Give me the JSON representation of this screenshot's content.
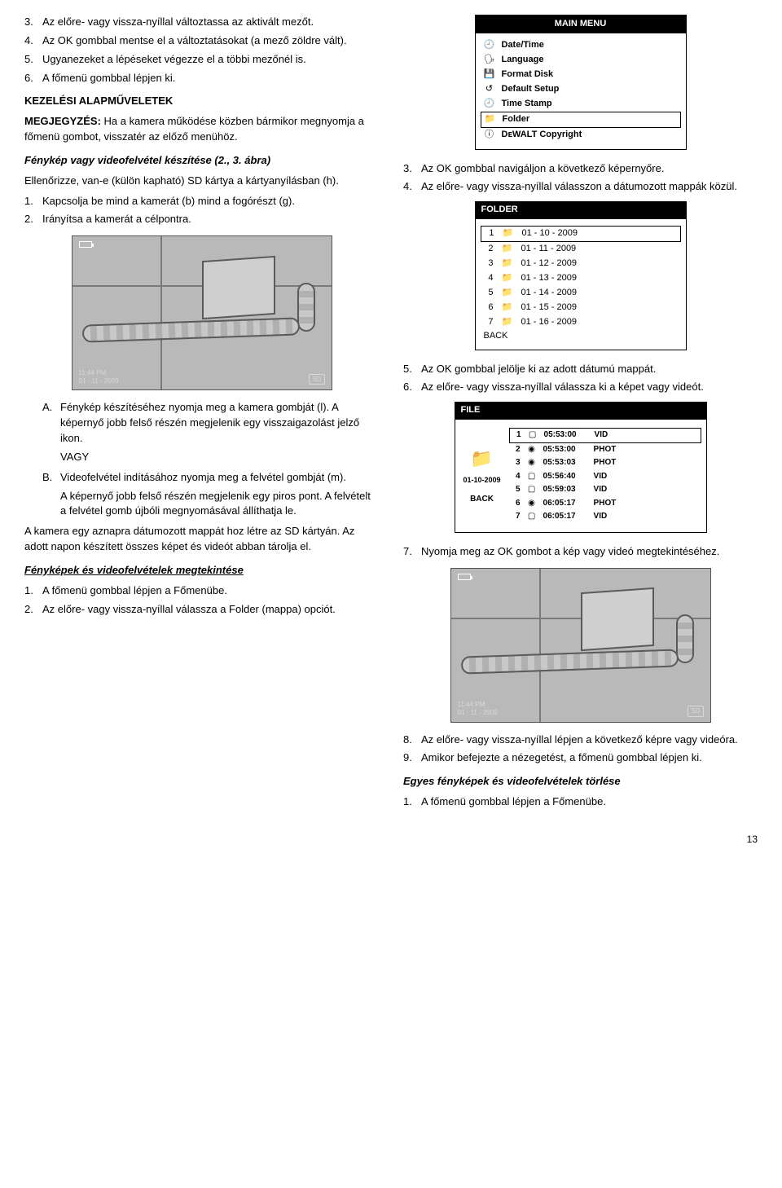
{
  "left": {
    "steps_top": [
      {
        "n": "3.",
        "t": "Az előre- vagy vissza-nyíllal változtassa az aktivált mezőt."
      },
      {
        "n": "4.",
        "t": "Az OK gombbal mentse el a változtatásokat (a mező zöldre vált)."
      },
      {
        "n": "5.",
        "t": "Ugyanezeket a lépéseket végezze el a többi mezőnél is."
      },
      {
        "n": "6.",
        "t": "A főmenü gombbal lépjen ki."
      }
    ],
    "ops_title": "KEZELÉSI ALAPMŰVELETEK",
    "note_label": "MEGJEGYZÉS:",
    "note_text": " Ha a kamera működése közben bármikor megnyomja a főmenü gombot, visszatér az előző menühöz.",
    "photo_title": "Fénykép vagy videofelvétel készítése (2., 3. ábra)",
    "photo_intro": "Ellenőrizze, van-e (külön kapható) SD kártya a kártyanyílásban (h).",
    "photo_steps": [
      {
        "n": "1.",
        "t": "Kapcsolja be mind a kamerát (b) mind a fogórészt (g)."
      },
      {
        "n": "2.",
        "t": "Irányítsa a kamerát a célpontra."
      }
    ],
    "preview_time": "11:44 PM",
    "preview_date": "01 - 11 - 2009",
    "sd_label": "SD",
    "sub_a_label": "A.",
    "sub_a_text": "Fénykép készítéséhez nyomja meg a kamera gombját (l). A képernyő jobb felső részén megjelenik egy visszaigazolást jelző ikon.",
    "or_label": "VAGY",
    "sub_b_label": "B.",
    "sub_b_text": "Videofelvétel indításához nyomja meg a felvétel gombját (m).",
    "sub_b_extra": "A képernyő jobb felső részén megjelenik egy piros pont. A felvételt a felvétel gomb újbóli megnyomásával állíthatja le.",
    "para_after": "A kamera egy aznapra dátumozott mappát hoz létre az SD kártyán. Az adott napon készített összes képet és videót abban tárolja el.",
    "view_title": "Fényképek és videofelvételek megtekintése",
    "view_steps": [
      {
        "n": "1.",
        "t": "A főmenü gombbal lépjen a Főmenübe."
      },
      {
        "n": "2.",
        "t": "Az előre- vagy vissza-nyíllal válassza a Folder (mappa) opciót."
      }
    ]
  },
  "right": {
    "menu_title": "MAIN MENU",
    "menu_items": [
      {
        "icon": "🕘",
        "label": "Date/Time",
        "boxed": false
      },
      {
        "icon": "🗣",
        "label": "Language",
        "boxed": false
      },
      {
        "icon": "💾",
        "label": "Format Disk",
        "boxed": false
      },
      {
        "icon": "↺",
        "label": "Default Setup",
        "boxed": false
      },
      {
        "icon": "🕘",
        "label": "Time Stamp",
        "boxed": false
      },
      {
        "icon": "📁",
        "label": "Folder",
        "boxed": true
      },
      {
        "icon": "ⓘ",
        "label": "DᴇWALT Copyright",
        "boxed": false
      }
    ],
    "steps_after_menu": [
      {
        "n": "3.",
        "t": "Az OK gombbal navigáljon a következő képernyőre."
      },
      {
        "n": "4.",
        "t": "Az előre- vagy vissza-nyíllal válasszon a dátumozott mappák közül."
      }
    ],
    "folder_title": "FOLDER",
    "folder_items": [
      {
        "n": "1",
        "label": "01 - 10 - 2009",
        "boxed": true
      },
      {
        "n": "2",
        "label": "01 - 11 - 2009",
        "boxed": false
      },
      {
        "n": "3",
        "label": "01 - 12 - 2009",
        "boxed": false
      },
      {
        "n": "4",
        "label": "01 - 13 - 2009",
        "boxed": false
      },
      {
        "n": "5",
        "label": "01 - 14 - 2009",
        "boxed": false
      },
      {
        "n": "6",
        "label": "01 - 15 - 2009",
        "boxed": false
      },
      {
        "n": "7",
        "label": "01 - 16 - 2009",
        "boxed": false
      }
    ],
    "folder_back": "BACK",
    "steps_after_folder": [
      {
        "n": "5.",
        "t": "Az OK gombbal jelölje ki az adott dátumú mappát."
      },
      {
        "n": "6.",
        "t": "Az előre- vagy vissza-nyíllal válassza ki a képet vagy videót."
      }
    ],
    "file_title": "FILE",
    "file_date": "01-10-2009",
    "file_items": [
      {
        "n": "1",
        "icon": "▢",
        "time": "05:53:00",
        "type": "VID",
        "boxed": true
      },
      {
        "n": "2",
        "icon": "◉",
        "time": "05:53:00",
        "type": "PHOT",
        "boxed": false
      },
      {
        "n": "3",
        "icon": "◉",
        "time": "05:53:03",
        "type": "PHOT",
        "boxed": false
      },
      {
        "n": "4",
        "icon": "▢",
        "time": "05:56:40",
        "type": "VID",
        "boxed": false
      },
      {
        "n": "5",
        "icon": "▢",
        "time": "05:59:03",
        "type": "VID",
        "boxed": false
      },
      {
        "n": "6",
        "icon": "◉",
        "time": "06:05:17",
        "type": "PHOT",
        "boxed": false
      },
      {
        "n": "7",
        "icon": "▢",
        "time": "06:05:17",
        "type": "VID",
        "boxed": false
      }
    ],
    "file_back": "BACK",
    "step7": {
      "n": "7.",
      "t": "Nyomja meg az OK gombot a kép vagy videó megtekintéséhez."
    },
    "preview_time": "11:44 PM",
    "preview_date": "01 - 11 - 2009",
    "sd_label": "SD",
    "steps_after_preview": [
      {
        "n": "8.",
        "t": "Az előre- vagy vissza-nyíllal lépjen a következő képre vagy videóra."
      },
      {
        "n": "9.",
        "t": "Amikor befejezte a nézegetést, a főmenü gombbal lépjen ki."
      }
    ],
    "delete_title": "Egyes fényképek és videofelvételek törlése",
    "delete_step": {
      "n": "1.",
      "t": "A főmenü gombbal lépjen a Főmenübe."
    }
  },
  "page_number": "13"
}
